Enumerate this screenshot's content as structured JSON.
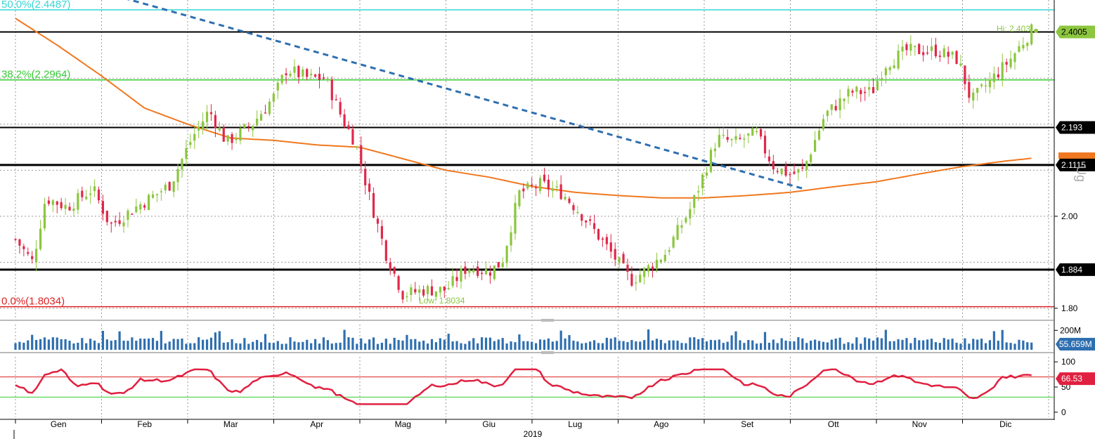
{
  "chart_data": [
    {
      "panel": "price",
      "type": "candlestick",
      "title": "",
      "ylim": [
        1.78,
        2.47
      ],
      "yticks": [
        "2.00",
        "1.80"
      ],
      "grid": true,
      "x_axis": {
        "months": [
          "Gen",
          "Feb",
          "Mar",
          "Apr",
          "Mag",
          "Giu",
          "Lug",
          "Ago",
          "Set",
          "Ott",
          "Nov",
          "Dic"
        ],
        "year_label": "2019"
      },
      "fib_levels": [
        {
          "label": "50.0%(2.4487)",
          "value": 2.4487,
          "color": "#33d6d6"
        },
        {
          "label": "38.2%(2.2964)",
          "value": 2.2964,
          "color": "#33cc33"
        },
        {
          "label": "0.0%(1.8034)",
          "value": 1.8034,
          "color": "#e02020"
        }
      ],
      "hlines": [
        {
          "value": 2.4005,
          "label": "2.4005"
        },
        {
          "value": 2.193,
          "label": "2.193"
        },
        {
          "value": 2.1115,
          "label": "2.1115"
        },
        {
          "value": 1.884,
          "label": "1.884"
        }
      ],
      "price_tag": {
        "label": "2.4005",
        "color": "#8cc63f"
      },
      "ma_tag": {
        "color": "#f07820"
      },
      "annotations": {
        "high": "Hi: 2.403",
        "low": "Low: 1.8034"
      },
      "side_label": "Ug",
      "trendline": {
        "from": {
          "month_index": 1.15,
          "value": 2.48
        },
        "to": {
          "month_index": 9.15,
          "value": 2.06
        }
      },
      "moving_average": [
        {
          "t": 0.0,
          "v": 2.43
        },
        {
          "t": 0.5,
          "v": 2.37
        },
        {
          "t": 1.0,
          "v": 2.305
        },
        {
          "t": 1.5,
          "v": 2.235
        },
        {
          "t": 2.0,
          "v": 2.2
        },
        {
          "t": 2.5,
          "v": 2.17
        },
        {
          "t": 3.0,
          "v": 2.165
        },
        {
          "t": 3.5,
          "v": 2.155
        },
        {
          "t": 4.0,
          "v": 2.15
        },
        {
          "t": 4.5,
          "v": 2.125
        },
        {
          "t": 5.0,
          "v": 2.1
        },
        {
          "t": 5.5,
          "v": 2.085
        },
        {
          "t": 6.0,
          "v": 2.065
        },
        {
          "t": 6.5,
          "v": 2.052
        },
        {
          "t": 7.0,
          "v": 2.045
        },
        {
          "t": 7.5,
          "v": 2.04
        },
        {
          "t": 8.0,
          "v": 2.04
        },
        {
          "t": 8.5,
          "v": 2.045
        },
        {
          "t": 9.0,
          "v": 2.052
        },
        {
          "t": 9.5,
          "v": 2.064
        },
        {
          "t": 10.0,
          "v": 2.075
        },
        {
          "t": 10.5,
          "v": 2.092
        },
        {
          "t": 11.0,
          "v": 2.108
        },
        {
          "t": 11.5,
          "v": 2.12
        },
        {
          "t": 12.0,
          "v": 2.13
        }
      ],
      "close_anchors": [
        {
          "t": 0.0,
          "v": 1.95
        },
        {
          "t": 0.2,
          "v": 1.9
        },
        {
          "t": 0.35,
          "v": 2.04
        },
        {
          "t": 0.6,
          "v": 2.02
        },
        {
          "t": 0.9,
          "v": 2.06
        },
        {
          "t": 1.1,
          "v": 1.98
        },
        {
          "t": 1.4,
          "v": 2.02
        },
        {
          "t": 1.65,
          "v": 2.05
        },
        {
          "t": 1.8,
          "v": 2.07
        },
        {
          "t": 2.05,
          "v": 2.17
        },
        {
          "t": 2.25,
          "v": 2.23
        },
        {
          "t": 2.45,
          "v": 2.16
        },
        {
          "t": 2.75,
          "v": 2.2
        },
        {
          "t": 3.0,
          "v": 2.26
        },
        {
          "t": 3.15,
          "v": 2.32
        },
        {
          "t": 3.4,
          "v": 2.3
        },
        {
          "t": 3.6,
          "v": 2.3
        },
        {
          "t": 3.8,
          "v": 2.21
        },
        {
          "t": 3.95,
          "v": 2.16
        },
        {
          "t": 4.1,
          "v": 2.05
        },
        {
          "t": 4.3,
          "v": 1.92
        },
        {
          "t": 4.5,
          "v": 1.83
        },
        {
          "t": 4.75,
          "v": 1.84
        },
        {
          "t": 5.0,
          "v": 1.84
        },
        {
          "t": 5.25,
          "v": 1.89
        },
        {
          "t": 5.5,
          "v": 1.88
        },
        {
          "t": 5.65,
          "v": 1.9
        },
        {
          "t": 5.85,
          "v": 2.05
        },
        {
          "t": 6.1,
          "v": 2.07
        },
        {
          "t": 6.35,
          "v": 2.05
        },
        {
          "t": 6.55,
          "v": 2.01
        },
        {
          "t": 6.8,
          "v": 1.95
        },
        {
          "t": 7.0,
          "v": 1.9
        },
        {
          "t": 7.15,
          "v": 1.86
        },
        {
          "t": 7.3,
          "v": 1.88
        },
        {
          "t": 7.55,
          "v": 1.92
        },
        {
          "t": 7.85,
          "v": 2.02
        },
        {
          "t": 8.15,
          "v": 2.17
        },
        {
          "t": 8.35,
          "v": 2.16
        },
        {
          "t": 8.6,
          "v": 2.18
        },
        {
          "t": 8.8,
          "v": 2.11
        },
        {
          "t": 9.0,
          "v": 2.09
        },
        {
          "t": 9.15,
          "v": 2.1
        },
        {
          "t": 9.4,
          "v": 2.22
        },
        {
          "t": 9.7,
          "v": 2.27
        },
        {
          "t": 9.95,
          "v": 2.27
        },
        {
          "t": 10.1,
          "v": 2.33
        },
        {
          "t": 10.35,
          "v": 2.36
        },
        {
          "t": 10.7,
          "v": 2.36
        },
        {
          "t": 10.95,
          "v": 2.34
        },
        {
          "t": 11.1,
          "v": 2.25
        },
        {
          "t": 11.3,
          "v": 2.29
        },
        {
          "t": 11.55,
          "v": 2.34
        },
        {
          "t": 11.8,
          "v": 2.403
        }
      ]
    },
    {
      "panel": "volume",
      "type": "bar",
      "ylabels": [
        "200M"
      ],
      "last_value_label": "55.659M",
      "color": "#2e6fb0",
      "ylim": [
        0,
        260
      ]
    },
    {
      "panel": "rsi",
      "type": "line",
      "ylim": [
        -10,
        110
      ],
      "yticks": [
        "100",
        "50",
        "0"
      ],
      "bands": {
        "upper": 70,
        "lower": 30
      },
      "last_value_label": "66.53",
      "color": "#e02040"
    }
  ]
}
